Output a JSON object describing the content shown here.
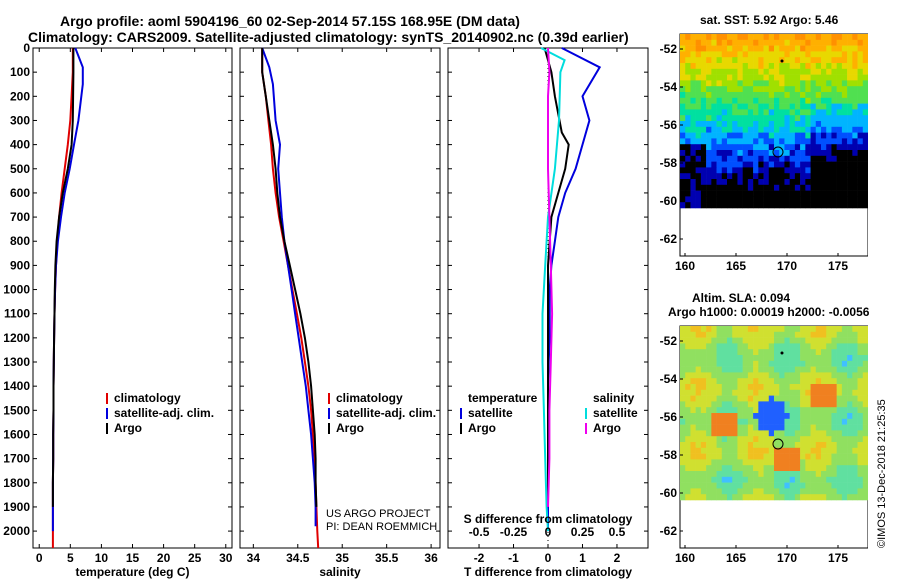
{
  "title": {
    "line1": "Argo profile: aoml 5904196_60 02-Sep-2014 57.15S 168.95E (DM data)",
    "line2": "Climatology: CARS2009. Satellite-adjusted climatology: synTS_20140902.nc (0.39d earlier)"
  },
  "colors": {
    "climatology": "#e00000",
    "satellite": "#0000dd",
    "argo": "#000000",
    "salinity_satellite": "#00dddd",
    "salinity_argo": "#ee00ee"
  },
  "panels": {
    "temperature": {
      "xlabel": "temperature (deg C)",
      "xticks": [
        "0",
        "5",
        "10",
        "15",
        "20",
        "25",
        "30"
      ],
      "legend": [
        "climatology",
        "satellite-adj. clim.",
        "Argo"
      ]
    },
    "salinity": {
      "xlabel": "salinity",
      "xticks": [
        "34",
        "34.5",
        "35",
        "35.5",
        "36"
      ],
      "legend": [
        "climatology",
        "satellite-adj. clim.",
        "Argo"
      ],
      "note1": "US ARGO PROJECT",
      "note2": "PI: DEAN ROEMMICH"
    },
    "difference": {
      "xlabel": "T difference from climatology",
      "xticks": [
        "-2",
        "-1",
        "0",
        "1",
        "2"
      ],
      "top_xlabel": "S difference from climatology",
      "top_xticks": [
        "-0.5",
        "-0.25",
        "0",
        "0.25",
        "0.5"
      ],
      "legend_t_title": "temperature",
      "legend_s_title": "salinity",
      "legend_t": [
        "satellite",
        "Argo"
      ],
      "legend_s": [
        "satellite",
        "Argo"
      ]
    }
  },
  "yticks": [
    "0",
    "100",
    "200",
    "300",
    "400",
    "500",
    "600",
    "700",
    "800",
    "900",
    "1000",
    "1100",
    "1200",
    "1300",
    "1400",
    "1500",
    "1600",
    "1700",
    "1800",
    "1900",
    "2000"
  ],
  "maps": {
    "sst": {
      "title": "sat. SST: 5.92 Argo: 5.46",
      "yticks": [
        "-52",
        "-54",
        "-56",
        "-58",
        "-60",
        "-62"
      ],
      "xticks": [
        "160",
        "165",
        "170",
        "175"
      ]
    },
    "sla": {
      "title1": "Altim. SLA: 0.094",
      "title2": "Argo h1000: 0.00019 h2000: -0.0056",
      "yticks": [
        "-52",
        "-54",
        "-56",
        "-58",
        "-60",
        "-62"
      ],
      "xticks": [
        "160",
        "165",
        "170",
        "175"
      ]
    }
  },
  "credit": "©IMOS 13-Dec-2018 21:25:35",
  "chart_data": [
    {
      "type": "line",
      "title": "temperature",
      "xlabel": "temperature (deg C)",
      "ylabel": "",
      "xlim": [
        -1,
        31
      ],
      "ylim": [
        2070,
        0
      ],
      "series": [
        {
          "name": "climatology",
          "x": [
            5.4,
            5.4,
            5.2,
            5.0,
            4.6,
            4.1,
            3.6,
            3.2,
            2.9,
            2.7,
            2.55,
            2.45,
            2.4,
            2.35,
            2.3,
            2.3,
            2.25,
            2.25,
            2.2,
            2.2,
            2.2,
            2.2
          ],
          "y": [
            0,
            100,
            200,
            300,
            400,
            500,
            600,
            700,
            800,
            900,
            1000,
            1100,
            1200,
            1300,
            1400,
            1500,
            1600,
            1700,
            1800,
            1900,
            2000,
            2070
          ]
        },
        {
          "name": "satellite-adj. clim.",
          "x": [
            5.8,
            7.0,
            7.0,
            6.3,
            5.6,
            4.9,
            4.1,
            3.5,
            3.0,
            2.7,
            2.55,
            2.45,
            2.4,
            2.35,
            2.3,
            2.3,
            2.25,
            2.25,
            2.2,
            2.2,
            2.2
          ],
          "y": [
            0,
            80,
            150,
            300,
            400,
            500,
            600,
            700,
            800,
            900,
            1000,
            1100,
            1200,
            1300,
            1400,
            1500,
            1600,
            1700,
            1800,
            1900,
            2000
          ]
        },
        {
          "name": "Argo",
          "x": [
            5.5,
            5.5,
            5.45,
            5.4,
            5.2,
            4.6,
            3.8,
            3.2,
            2.8,
            2.6,
            2.5,
            2.45,
            2.4,
            2.35,
            2.3,
            2.3,
            2.25,
            2.25,
            2.2,
            2.2
          ],
          "y": [
            0,
            100,
            200,
            300,
            400,
            500,
            600,
            700,
            800,
            900,
            1000,
            1100,
            1200,
            1300,
            1400,
            1500,
            1600,
            1700,
            1800,
            1900
          ]
        }
      ]
    },
    {
      "type": "line",
      "title": "salinity",
      "xlabel": "salinity",
      "ylabel": "",
      "xlim": [
        33.85,
        36.1
      ],
      "ylim": [
        2070,
        0
      ],
      "series": [
        {
          "name": "climatology",
          "x": [
            34.1,
            34.1,
            34.14,
            34.17,
            34.2,
            34.22,
            34.25,
            34.29,
            34.34,
            34.39,
            34.44,
            34.49,
            34.54,
            34.58,
            34.62,
            34.65,
            34.67,
            34.69,
            34.7,
            34.71,
            34.72,
            34.73
          ],
          "y": [
            0,
            100,
            200,
            300,
            400,
            500,
            600,
            700,
            800,
            900,
            1000,
            1100,
            1200,
            1300,
            1400,
            1500,
            1600,
            1700,
            1800,
            1900,
            2000,
            2070
          ]
        },
        {
          "name": "satellite-adj. clim.",
          "x": [
            34.1,
            34.18,
            34.22,
            34.25,
            34.3,
            34.28,
            34.3,
            34.32,
            34.35,
            34.39,
            34.43,
            34.47,
            34.51,
            34.55,
            34.59,
            34.62,
            34.65,
            34.67,
            34.69,
            34.7,
            34.7
          ],
          "y": [
            0,
            80,
            150,
            300,
            400,
            500,
            600,
            700,
            800,
            900,
            1000,
            1100,
            1200,
            1300,
            1400,
            1500,
            1600,
            1700,
            1800,
            1900,
            1980
          ]
        },
        {
          "name": "Argo",
          "x": [
            34.1,
            34.1,
            34.14,
            34.18,
            34.22,
            34.25,
            34.27,
            34.3,
            34.35,
            34.41,
            34.47,
            34.53,
            34.58,
            34.62,
            34.65,
            34.67,
            34.69,
            34.7,
            34.7,
            34.71
          ],
          "y": [
            0,
            100,
            200,
            300,
            400,
            500,
            600,
            700,
            800,
            900,
            1000,
            1100,
            1200,
            1300,
            1400,
            1500,
            1600,
            1700,
            1800,
            1900
          ]
        }
      ]
    },
    {
      "type": "line",
      "title": "difference",
      "xlabel": "T difference from climatology",
      "ylabel": "",
      "xlim": [
        -2.9,
        2.9
      ],
      "ylim": [
        2070,
        0
      ],
      "series": [
        {
          "name": "satellite",
          "x": [
            0.4,
            1.5,
            1.0,
            1.2,
            1.0,
            0.8,
            0.5,
            0.3,
            0.2,
            0.1,
            0.05,
            0.05,
            0.05,
            0.02,
            0.0,
            0.0,
            0.0,
            0.0,
            0.0,
            0.0,
            0.0
          ],
          "y": [
            0,
            80,
            200,
            300,
            400,
            500,
            600,
            700,
            800,
            900,
            1000,
            1100,
            1200,
            1300,
            1400,
            1500,
            1600,
            1700,
            1800,
            1900,
            2000
          ]
        },
        {
          "name": "Argo",
          "x": [
            -0.1,
            0.1,
            0.2,
            0.4,
            0.6,
            0.5,
            0.3,
            0.1,
            0.05,
            0.0,
            0.0,
            0.0,
            0.0,
            0.0,
            0.0,
            0.0,
            0.0,
            0.0,
            0.0,
            0.0
          ],
          "y": [
            0,
            100,
            200,
            350,
            400,
            500,
            600,
            700,
            800,
            900,
            1000,
            1100,
            1200,
            1300,
            1400,
            1500,
            1600,
            1700,
            1800,
            1900
          ]
        }
      ]
    }
  ]
}
